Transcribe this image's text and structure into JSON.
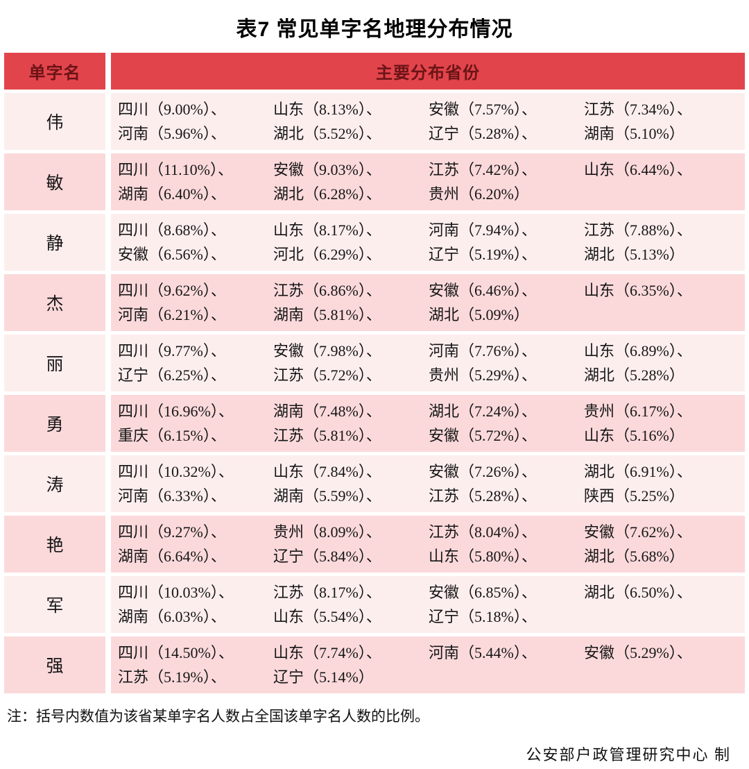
{
  "title": "表7  常见单字名地理分布情况",
  "header": {
    "name_col": "单字名",
    "provinces_col": "主要分布省份"
  },
  "rows": [
    {
      "name": "伟",
      "items": [
        "四川（9.00%）、",
        "山东（8.13%）、",
        "安徽（7.57%）、",
        "江苏（7.34%）、",
        "河南（5.96%）、",
        "湖北（5.52%）、",
        "辽宁（5.28%）、",
        "湖南（5.10%）"
      ]
    },
    {
      "name": "敏",
      "items": [
        "四川（11.10%）、",
        "安徽（9.03%）、",
        "江苏（7.42%）、",
        "山东（6.44%）、",
        "湖南（6.40%）、",
        "湖北（6.28%）、",
        "贵州（6.20%）"
      ]
    },
    {
      "name": "静",
      "items": [
        "四川（8.68%）、",
        "山东（8.17%）、",
        "河南（7.94%）、",
        "江苏（7.88%）、",
        "安徽（6.56%）、",
        "河北（6.29%）、",
        "辽宁（5.19%）、",
        "湖北（5.13%）"
      ]
    },
    {
      "name": "杰",
      "items": [
        "四川（9.62%）、",
        "江苏（6.86%）、",
        "安徽（6.46%）、",
        "山东（6.35%）、",
        "河南（6.21%）、",
        "湖南（5.81%）、",
        "湖北（5.09%）"
      ]
    },
    {
      "name": "丽",
      "items": [
        "四川（9.77%）、",
        "安徽（7.98%）、",
        "河南（7.76%）、",
        "山东（6.89%）、",
        "辽宁（6.25%）、",
        "江苏（5.72%）、",
        "贵州（5.29%）、",
        "湖北（5.28%）"
      ]
    },
    {
      "name": "勇",
      "items": [
        "四川（16.96%）、",
        "湖南（7.48%）、",
        "湖北（7.24%）、",
        "贵州（6.17%）、",
        "重庆（6.15%）、",
        "江苏（5.81%）、",
        "安徽（5.72%）、",
        "山东（5.16%）"
      ]
    },
    {
      "name": "涛",
      "items": [
        "四川（10.32%）、",
        "山东（7.84%）、",
        "安徽（7.26%）、",
        "湖北（6.91%）、",
        "河南（6.33%）、",
        "湖南（5.59%）、",
        "江苏（5.28%）、",
        "陕西（5.25%）"
      ]
    },
    {
      "name": "艳",
      "items": [
        "四川（9.27%）、",
        "贵州（8.09%）、",
        "江苏（8.04%）、",
        "安徽（7.62%）、",
        "湖南（6.64%）、",
        "辽宁（5.84%）、",
        "山东（5.80%）、",
        "湖北（5.68%）"
      ]
    },
    {
      "name": "军",
      "items": [
        "四川（10.03%）、",
        "江苏（8.17%）、",
        "安徽（6.85%）、",
        "湖北（6.50%）、",
        "湖南（6.03%）、",
        "山东（5.54%）、",
        "辽宁（5.18%）、"
      ]
    },
    {
      "name": "强",
      "items": [
        "四川（14.50%）、",
        "山东（7.74%）、",
        "河南（5.44%）、",
        "安徽（5.29%）、",
        "江苏（5.19%）、",
        "辽宁（5.14%）"
      ]
    }
  ],
  "note": "注：括号内数值为该省某单字名人数占全国该单字名人数的比例。",
  "credit": "公安部户政管理研究中心 制",
  "colors": {
    "header_bg": "#e2444b",
    "header_text": "#6b1417",
    "row_light": "#fdeeee",
    "row_pink": "#fbd9db"
  }
}
